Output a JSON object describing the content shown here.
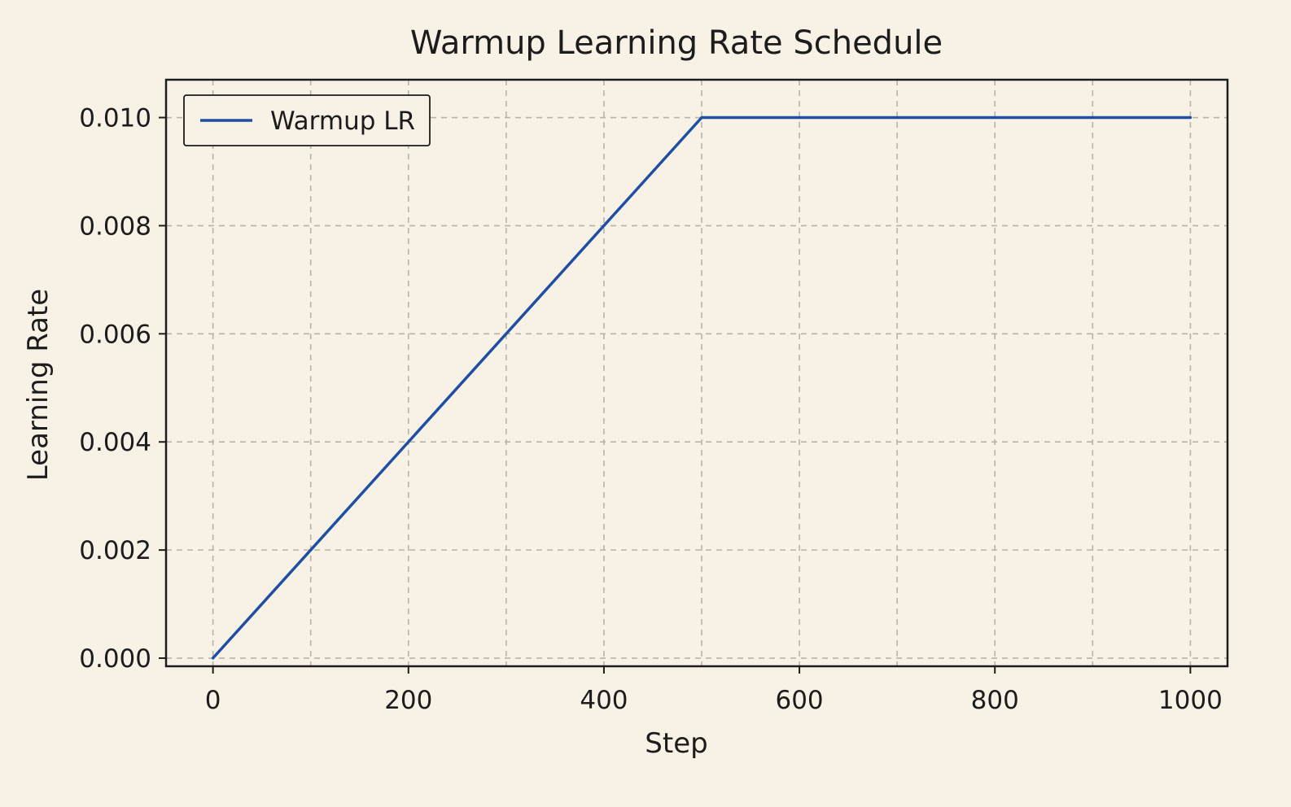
{
  "chart_data": {
    "type": "line",
    "title": "Warmup Learning Rate Schedule",
    "xlabel": "Step",
    "ylabel": "Learning Rate",
    "xlim": [
      -48,
      1038
    ],
    "ylim": [
      -0.00015,
      0.0107
    ],
    "xticks": [
      0,
      200,
      400,
      600,
      800,
      1000
    ],
    "xtick_labels": [
      "0",
      "200",
      "400",
      "600",
      "800",
      "1000"
    ],
    "yticks": [
      0.0,
      0.002,
      0.004,
      0.006,
      0.008,
      0.01
    ],
    "ytick_labels": [
      "0.000",
      "0.002",
      "0.004",
      "0.006",
      "0.008",
      "0.010"
    ],
    "minor_xticks": [
      100,
      300,
      500,
      700,
      900
    ],
    "grid": true,
    "legend": {
      "position": "top-left"
    },
    "series": [
      {
        "name": "Warmup LR",
        "color": "#1f4fa3",
        "x": [
          0,
          500,
          1000
        ],
        "y": [
          0.0,
          0.01,
          0.01
        ]
      }
    ]
  },
  "colors": {
    "background": "#f8f2e6",
    "axes": "#1c1c1c",
    "grid": "#b8b3a8",
    "line": "#1f4fa3"
  }
}
